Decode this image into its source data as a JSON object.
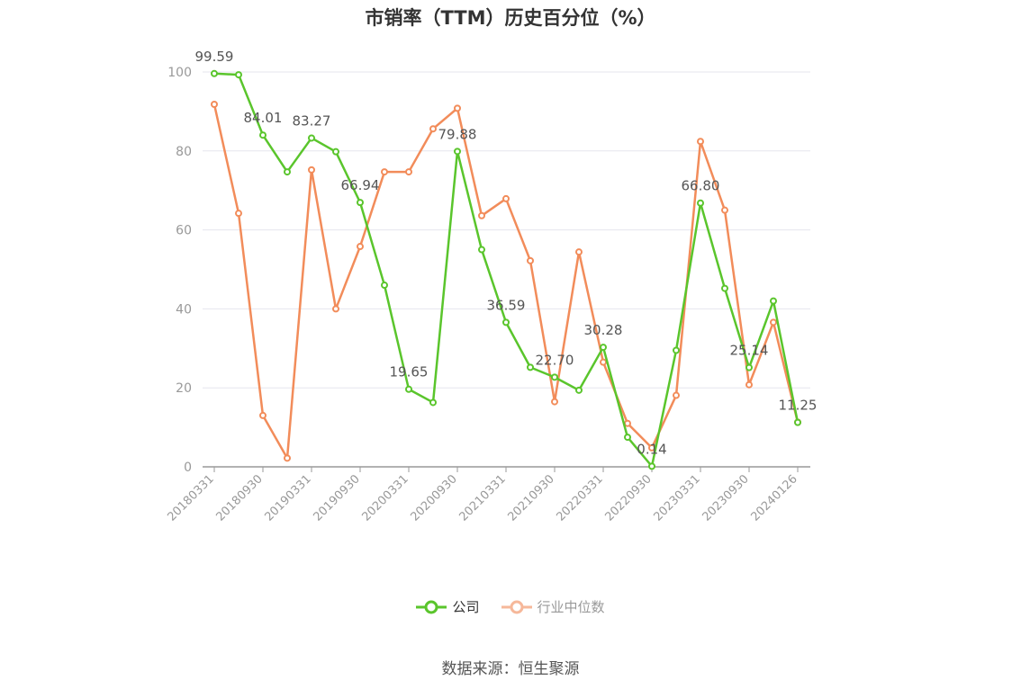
{
  "chart_data": {
    "type": "line",
    "title": "市销率（TTM）历史百分位（%）",
    "x": [
      "20180331",
      "20180630",
      "20180930",
      "20181231",
      "20190331",
      "20190630",
      "20190930",
      "20191231",
      "20200331",
      "20200630",
      "20200930",
      "20201231",
      "20210331",
      "20210630",
      "20210930",
      "20211231",
      "20220331",
      "20220630",
      "20220930",
      "20221231",
      "20230331",
      "20230630",
      "20230930",
      "20231231",
      "20240126"
    ],
    "x_tick_labels": [
      "20180331",
      "20180930",
      "20190331",
      "20190930",
      "20200331",
      "20200930",
      "20210331",
      "20210930",
      "20220331",
      "20220930",
      "20230331",
      "20230930",
      "20240126"
    ],
    "ylim": [
      0,
      100
    ],
    "y_ticks": [
      0,
      20,
      40,
      60,
      80,
      100
    ],
    "grid": true,
    "legend_position": "bottom",
    "series": [
      {
        "name": "公司",
        "color": "#5ac52c",
        "values": [
          99.59,
          99.3,
          84.01,
          74.7,
          83.27,
          79.8,
          66.94,
          46.0,
          19.65,
          16.3,
          79.88,
          55.0,
          36.59,
          25.2,
          22.7,
          19.4,
          30.28,
          7.5,
          0.14,
          29.5,
          66.8,
          45.2,
          25.14,
          42.0,
          11.25
        ],
        "labels": {
          "0": "99.59",
          "2": "84.01",
          "4": "83.27",
          "6": "66.94",
          "8": "19.65",
          "10": "79.88",
          "12": "36.59",
          "14": "22.70",
          "16": "30.28",
          "18": "0.14",
          "20": "66.80",
          "22": "25.14",
          "24": "11.25"
        }
      },
      {
        "name": "行业中位数",
        "color": "#f28c5a",
        "values": [
          91.8,
          64.2,
          13.0,
          2.2,
          75.2,
          40.0,
          55.8,
          74.7,
          74.7,
          85.6,
          90.8,
          63.6,
          67.9,
          52.2,
          16.5,
          54.4,
          26.5,
          11.0,
          4.8,
          18.1,
          82.4,
          65.0,
          20.8,
          36.6,
          11.3
        ]
      }
    ]
  },
  "source": "数据来源：恒生聚源",
  "colors": {
    "grid": "#e6e6ee",
    "axis": "#999999",
    "tick_text": "#999999",
    "label_text": "#555555"
  }
}
